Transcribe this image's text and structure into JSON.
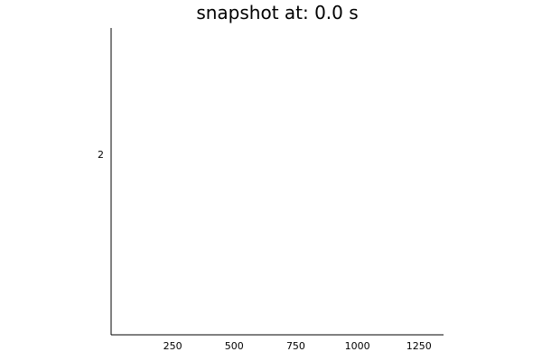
{
  "chart_data": {
    "type": "line",
    "title": "snapshot at: 0.0 s",
    "xlabel": "",
    "ylabel": "",
    "xlim": [
      0,
      1350
    ],
    "ylim": [
      1,
      2.7
    ],
    "xticks": [
      250,
      500,
      750,
      1000,
      1250
    ],
    "xtick_labels": [
      "250",
      "500",
      "750",
      "1000",
      "1250"
    ],
    "yticks": [
      2
    ],
    "ytick_labels": [
      "2"
    ],
    "grid": false,
    "legend": "none",
    "series": []
  }
}
